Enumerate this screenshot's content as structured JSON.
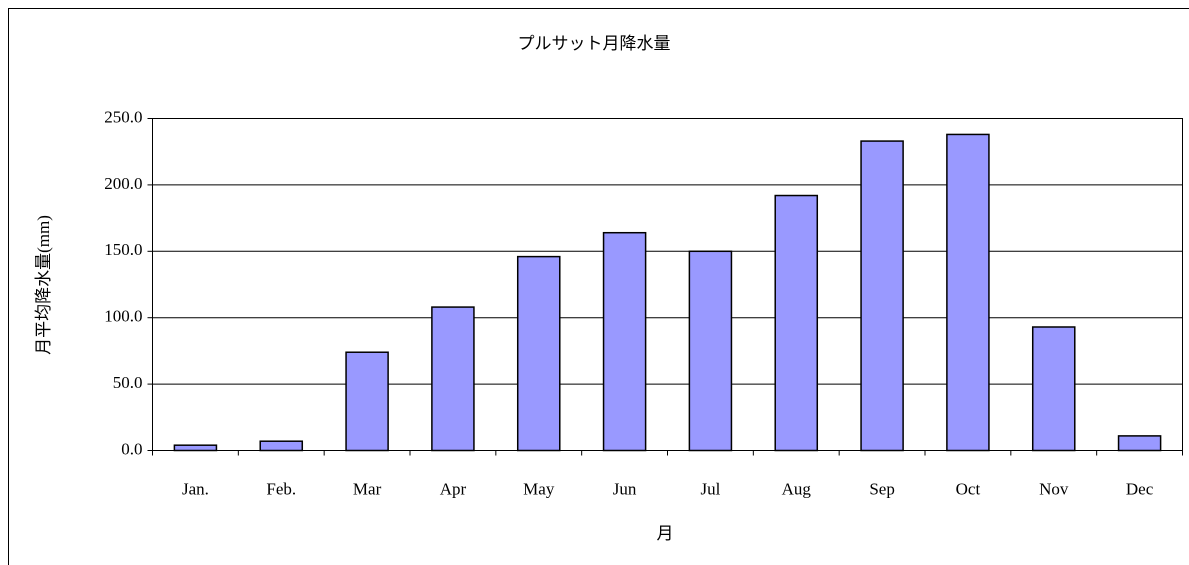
{
  "chart_data": {
    "type": "bar",
    "title": "プルサット月降水量",
    "x_label": "月",
    "y_label": "月平均降水量(mm)",
    "categories": [
      "Jan.",
      "Feb.",
      "Mar",
      "Apr",
      "May",
      "Jun",
      "Jul",
      "Aug",
      "Sep",
      "Oct",
      "Nov",
      "Dec"
    ],
    "values": [
      4,
      7,
      74,
      108,
      146,
      164,
      150,
      192,
      233,
      238,
      93,
      11
    ],
    "color": "#9999ff",
    "ylim": [
      0,
      250
    ],
    "yticks": [
      {
        "value": 0,
        "label": "0.0"
      },
      {
        "value": 50,
        "label": "50.0"
      },
      {
        "value": 100,
        "label": "100.0"
      },
      {
        "value": 150,
        "label": "150.0"
      },
      {
        "value": 200,
        "label": "200.0"
      },
      {
        "value": 250,
        "label": "250.0"
      }
    ],
    "grid": true
  }
}
